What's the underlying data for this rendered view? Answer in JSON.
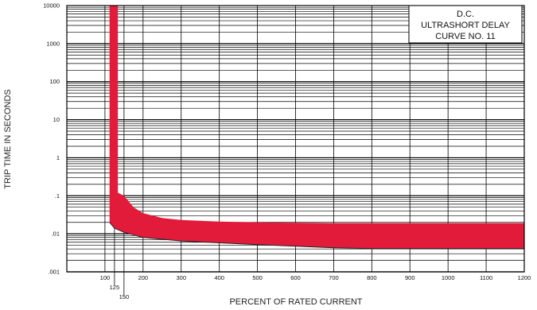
{
  "chart_data": {
    "type": "area",
    "title_lines": [
      "D.C.",
      "ULTRASHORT DELAY",
      "CURVE NO. 11"
    ],
    "xlabel": "PERCENT OF RATED CURRENT",
    "ylabel": "TRIP TIME IN SECONDS",
    "x_scale": "linear",
    "y_scale": "log",
    "xlim": [
      0,
      1200
    ],
    "ylim": [
      0.001,
      10000
    ],
    "grid": true,
    "x_ticks": [
      {
        "value": 100,
        "label": "100"
      },
      {
        "value": 125,
        "label": "125"
      },
      {
        "value": 150,
        "label": "150"
      },
      {
        "value": 200,
        "label": "200"
      },
      {
        "value": 300,
        "label": "300"
      },
      {
        "value": 400,
        "label": "400"
      },
      {
        "value": 500,
        "label": "500"
      },
      {
        "value": 600,
        "label": "600"
      },
      {
        "value": 700,
        "label": "700"
      },
      {
        "value": 800,
        "label": "800"
      },
      {
        "value": 900,
        "label": "900"
      },
      {
        "value": 1000,
        "label": "1000"
      },
      {
        "value": 1100,
        "label": "1100"
      },
      {
        "value": 1200,
        "label": "1200"
      }
    ],
    "y_ticks": [
      {
        "value": 10000,
        "label": "10000"
      },
      {
        "value": 1000,
        "label": "1000"
      },
      {
        "value": 100,
        "label": "100"
      },
      {
        "value": 10,
        "label": "10"
      },
      {
        "value": 1,
        "label": "1"
      },
      {
        "value": 0.1,
        "label": ".1"
      },
      {
        "value": 0.01,
        "label": ".01"
      },
      {
        "value": 0.001,
        "label": ".001"
      }
    ],
    "band": {
      "color": "#e31b3a",
      "upper": [
        [
          134,
          10000
        ],
        [
          134,
          0.12
        ],
        [
          150,
          0.1
        ],
        [
          175,
          0.05
        ],
        [
          200,
          0.035
        ],
        [
          250,
          0.026
        ],
        [
          300,
          0.023
        ],
        [
          400,
          0.021
        ],
        [
          500,
          0.02
        ],
        [
          700,
          0.019
        ],
        [
          800,
          0.019
        ],
        [
          1000,
          0.019
        ],
        [
          1200,
          0.019
        ]
      ],
      "lower": [
        [
          112,
          10000
        ],
        [
          112,
          0.02
        ],
        [
          125,
          0.014
        ],
        [
          150,
          0.011
        ],
        [
          200,
          0.008
        ],
        [
          300,
          0.0065
        ],
        [
          400,
          0.0058
        ],
        [
          500,
          0.0052
        ],
        [
          700,
          0.0043
        ],
        [
          800,
          0.0041
        ],
        [
          1000,
          0.0041
        ],
        [
          1200,
          0.0041
        ]
      ]
    }
  }
}
